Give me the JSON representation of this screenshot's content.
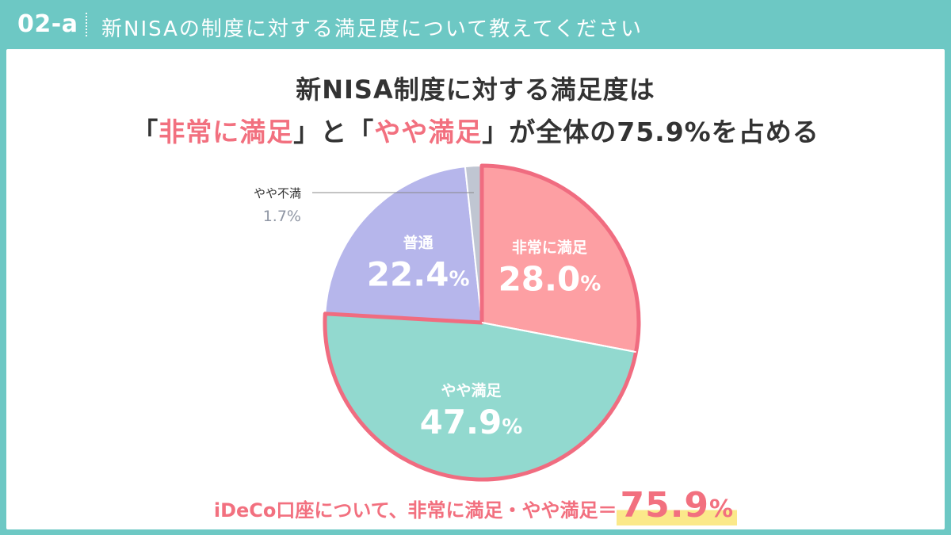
{
  "header": {
    "badge": "02-a",
    "title": "新NISAの制度に対する満足度について教えてください"
  },
  "headline": {
    "line1": "新NISA制度に対する満足度は",
    "q1_open": "「",
    "q1_text": "非常に満足",
    "q1_close": "」",
    "mid": "と",
    "q2_open": "「",
    "q2_text": "やや満足",
    "q2_close": "」",
    "tail": "が全体の75.9%を占める"
  },
  "chart_data": {
    "type": "pie",
    "start_angle_deg": 0,
    "direction": "clockwise",
    "slices": [
      {
        "label": "非常に満足",
        "value": 28.0,
        "display": "28.0",
        "color": "#fd9fa3",
        "highlight": true
      },
      {
        "label": "やや満足",
        "value": 47.9,
        "display": "47.9",
        "color": "#92d9cf",
        "highlight": true
      },
      {
        "label": "普通",
        "value": 22.4,
        "display": "22.4",
        "color": "#b6b6eb",
        "highlight": false
      },
      {
        "label": "やや不満",
        "value": 1.7,
        "display": "1.7",
        "color": "#c0c6d2",
        "highlight": false,
        "outside": true
      }
    ],
    "percent_sign": "%",
    "highlight_color": "#f06c80"
  },
  "footer": {
    "text": "iDeCo口座について、非常に満足・やや満足＝",
    "value": "75.9",
    "percent": "%"
  }
}
